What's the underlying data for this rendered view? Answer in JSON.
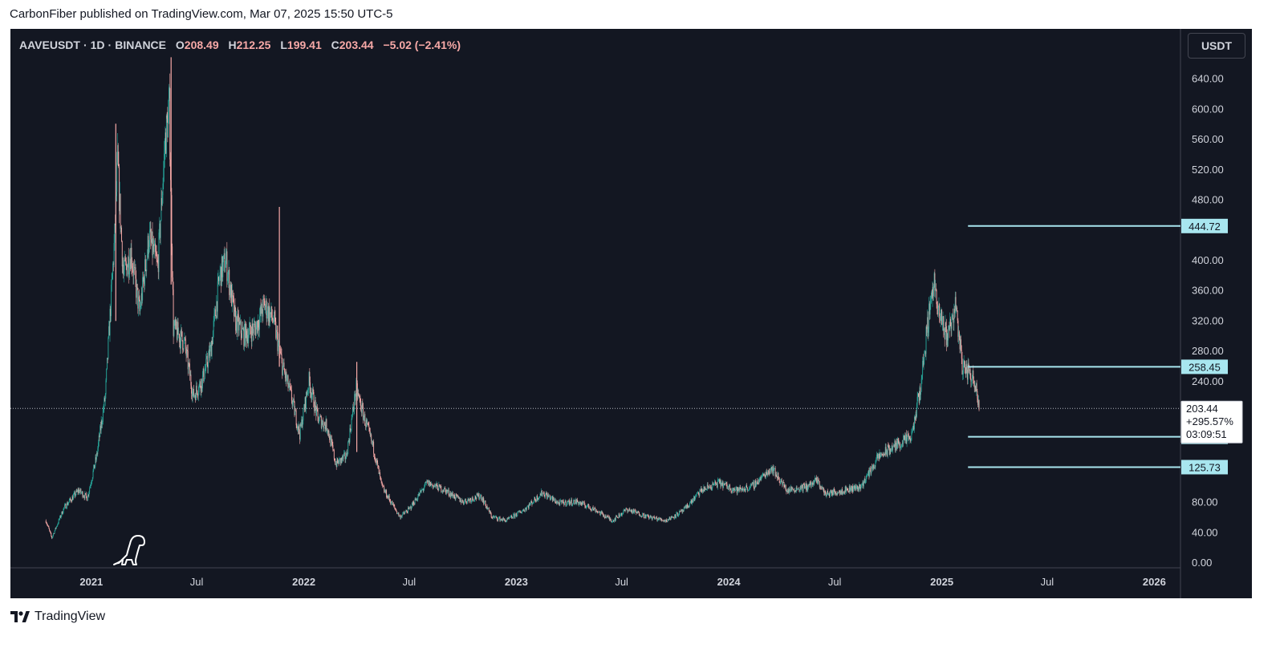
{
  "header": {
    "publisher_text": "CarbonFiber published on TradingView.com, Mar 07, 2025 15:50 UTC-5"
  },
  "legend": {
    "symbol": "AAVEUSDT",
    "interval": "1D",
    "exchange": "BINANCE",
    "open": "208.49",
    "high": "212.25",
    "low": "199.41",
    "close": "203.44",
    "change": "−5.02 (−2.41%)"
  },
  "currency_button": "USDT",
  "footer": {
    "brand": "TradingView"
  },
  "colors": {
    "background": "#131722",
    "up": "#26a69a",
    "down": "#f7a9a7",
    "level_line": "#a8e6ef",
    "axis_text": "#d1d4dc"
  },
  "chart_data": {
    "type": "candlestick",
    "title": "",
    "xlabel": "",
    "ylabel": "",
    "ylim": [
      0,
      680
    ],
    "xlim": [
      "2020-08-15",
      "2026-02-15"
    ],
    "y_ticks": [
      "0.00",
      "40.00",
      "80.00",
      "240.00",
      "280.00",
      "320.00",
      "360.00",
      "400.00",
      "480.00",
      "520.00",
      "560.00",
      "600.00",
      "640.00"
    ],
    "x_ticks": [
      {
        "label": "2021",
        "date": "2021-01-01"
      },
      {
        "label": "Jul",
        "date": "2021-07-01"
      },
      {
        "label": "2022",
        "date": "2022-01-01"
      },
      {
        "label": "Jul",
        "date": "2022-07-01"
      },
      {
        "label": "2023",
        "date": "2023-01-01"
      },
      {
        "label": "Jul",
        "date": "2023-07-01"
      },
      {
        "label": "2024",
        "date": "2024-01-01"
      },
      {
        "label": "Jul",
        "date": "2024-07-01"
      },
      {
        "label": "2025",
        "date": "2025-01-01"
      },
      {
        "label": "Jul",
        "date": "2025-07-01"
      },
      {
        "label": "2026",
        "date": "2026-01-01"
      }
    ],
    "horizontal_levels": [
      {
        "value": 444.72,
        "label": "444.72",
        "from": "2025-02-15"
      },
      {
        "value": 258.45,
        "label": "258.45",
        "from": "2025-02-15"
      },
      {
        "value": 165.84,
        "label": "165.84",
        "from": "2025-02-15"
      },
      {
        "value": 125.73,
        "label": "125.73",
        "from": "2025-02-15"
      }
    ],
    "last_price": {
      "value": 203.44,
      "label": "203.44",
      "change_pct": "+295.57%",
      "countdown": "03:09:51"
    },
    "price_path": [
      [
        "2020-10-15",
        55
      ],
      [
        "2020-10-25",
        32
      ],
      [
        "2020-11-15",
        72
      ],
      [
        "2020-12-10",
        95
      ],
      [
        "2020-12-25",
        85
      ],
      [
        "2021-01-10",
        140
      ],
      [
        "2021-01-25",
        220
      ],
      [
        "2021-02-10",
        430
      ],
      [
        "2021-02-15",
        530
      ],
      [
        "2021-02-25",
        380
      ],
      [
        "2021-03-10",
        410
      ],
      [
        "2021-03-25",
        330
      ],
      [
        "2021-04-10",
        430
      ],
      [
        "2021-04-25",
        390
      ],
      [
        "2021-05-08",
        560
      ],
      [
        "2021-05-15",
        600
      ],
      [
        "2021-05-22",
        310
      ],
      [
        "2021-06-10",
        290
      ],
      [
        "2021-06-25",
        220
      ],
      [
        "2021-07-10",
        240
      ],
      [
        "2021-07-25",
        280
      ],
      [
        "2021-08-10",
        380
      ],
      [
        "2021-08-20",
        400
      ],
      [
        "2021-09-05",
        320
      ],
      [
        "2021-09-20",
        300
      ],
      [
        "2021-10-10",
        310
      ],
      [
        "2021-10-25",
        340
      ],
      [
        "2021-11-10",
        320
      ],
      [
        "2021-11-25",
        260
      ],
      [
        "2021-12-10",
        220
      ],
      [
        "2021-12-25",
        170
      ],
      [
        "2022-01-10",
        240
      ],
      [
        "2022-01-25",
        190
      ],
      [
        "2022-02-10",
        180
      ],
      [
        "2022-02-25",
        130
      ],
      [
        "2022-03-15",
        140
      ],
      [
        "2022-04-01",
        230
      ],
      [
        "2022-04-15",
        190
      ],
      [
        "2022-05-01",
        150
      ],
      [
        "2022-05-15",
        100
      ],
      [
        "2022-06-15",
        60
      ],
      [
        "2022-07-01",
        70
      ],
      [
        "2022-08-01",
        105
      ],
      [
        "2022-09-01",
        95
      ],
      [
        "2022-10-01",
        80
      ],
      [
        "2022-11-01",
        88
      ],
      [
        "2022-11-20",
        60
      ],
      [
        "2022-12-15",
        55
      ],
      [
        "2023-01-15",
        70
      ],
      [
        "2023-02-15",
        92
      ],
      [
        "2023-03-15",
        78
      ],
      [
        "2023-04-15",
        80
      ],
      [
        "2023-05-15",
        70
      ],
      [
        "2023-06-15",
        55
      ],
      [
        "2023-07-10",
        70
      ],
      [
        "2023-08-15",
        60
      ],
      [
        "2023-09-15",
        55
      ],
      [
        "2023-10-15",
        68
      ],
      [
        "2023-11-15",
        95
      ],
      [
        "2023-12-15",
        105
      ],
      [
        "2024-01-15",
        95
      ],
      [
        "2024-02-10",
        100
      ],
      [
        "2024-03-15",
        125
      ],
      [
        "2024-04-10",
        95
      ],
      [
        "2024-05-15",
        100
      ],
      [
        "2024-06-01",
        108
      ],
      [
        "2024-06-15",
        90
      ],
      [
        "2024-07-15",
        95
      ],
      [
        "2024-08-15",
        100
      ],
      [
        "2024-09-15",
        140
      ],
      [
        "2024-10-15",
        155
      ],
      [
        "2024-11-10",
        165
      ],
      [
        "2024-11-25",
        230
      ],
      [
        "2024-12-10",
        330
      ],
      [
        "2024-12-18",
        375
      ],
      [
        "2024-12-25",
        330
      ],
      [
        "2025-01-10",
        300
      ],
      [
        "2025-01-25",
        340
      ],
      [
        "2025-02-05",
        260
      ],
      [
        "2025-02-18",
        250
      ],
      [
        "2025-03-01",
        235
      ],
      [
        "2025-03-07",
        203
      ]
    ],
    "spikes": [
      {
        "date": "2021-02-12",
        "high": 580
      },
      {
        "date": "2021-05-18",
        "high": 668
      },
      {
        "date": "2021-11-20",
        "high": 470
      },
      {
        "date": "2022-04-02",
        "high": 265
      }
    ]
  }
}
